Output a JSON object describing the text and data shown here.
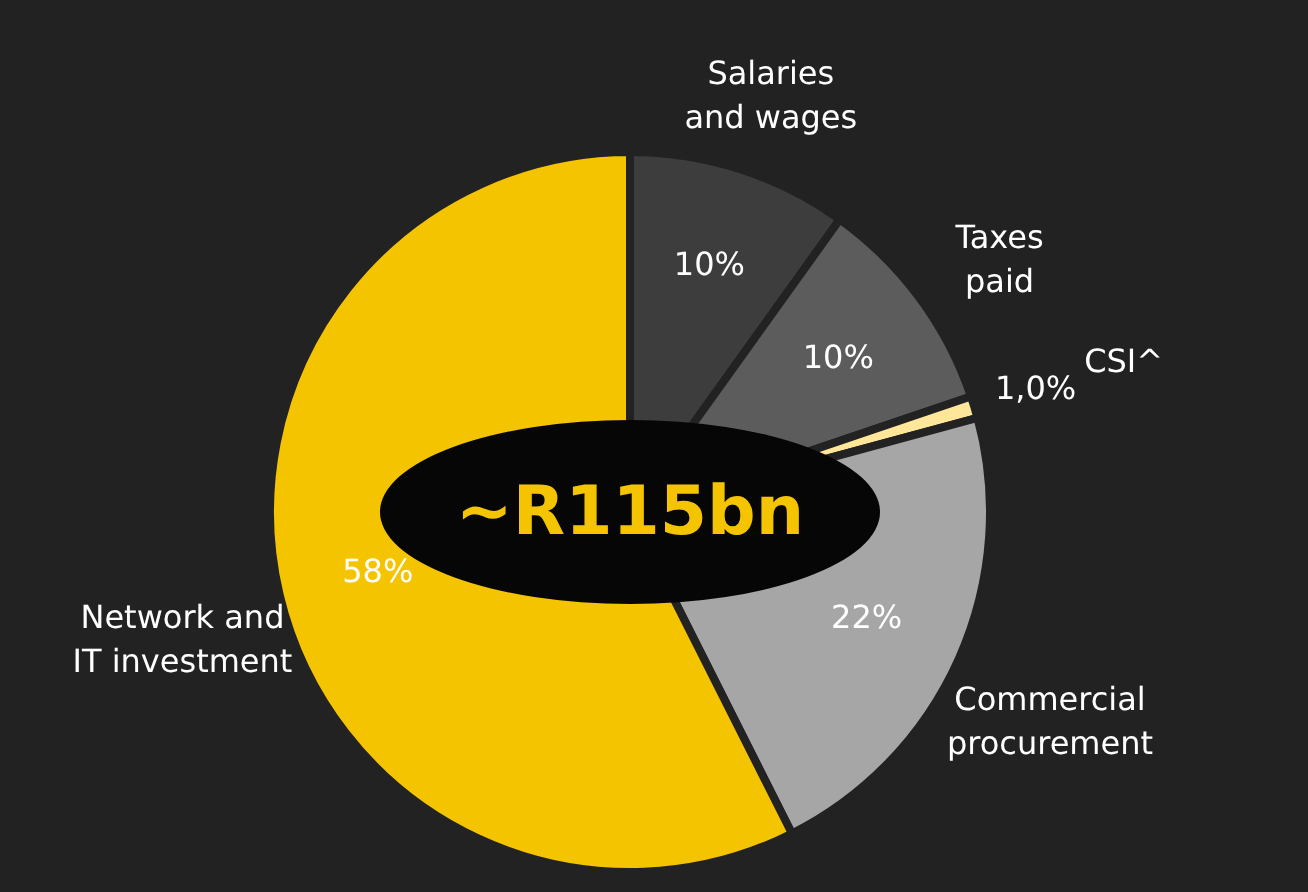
{
  "chart_data": {
    "type": "pie",
    "categories": [
      "Salaries and wages",
      "Taxes paid",
      "CSI^",
      "Commercial procurement",
      "Network and IT investment"
    ],
    "values": [
      10,
      10,
      1,
      22,
      58
    ],
    "colors": [
      "#3d3d3d",
      "#5c5c5c",
      "#ffe699",
      "#a6a6a6",
      "#f5c400"
    ],
    "value_labels": [
      "10%",
      "10%",
      "1,0%",
      "22%",
      "58%"
    ],
    "annotations": [
      "~R115bn"
    ]
  }
}
